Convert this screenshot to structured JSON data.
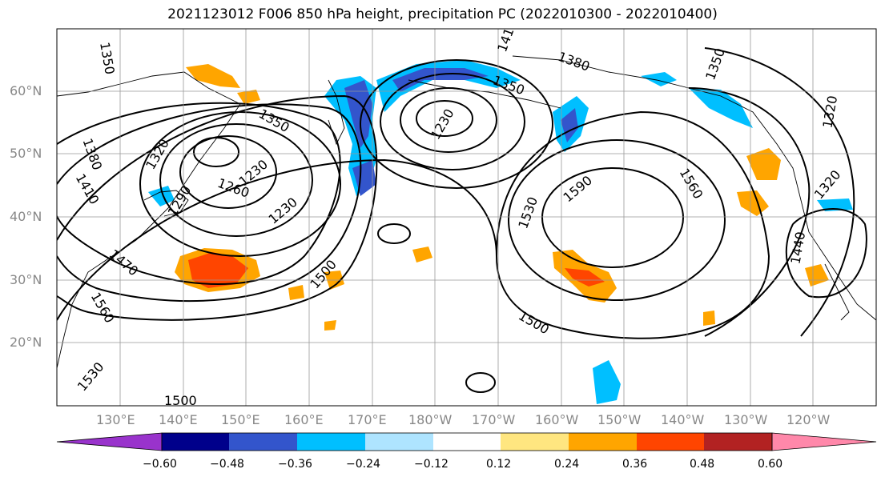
{
  "title": "2021123012 F006 850 hPa height, precipitation PC (2022010300 - 2022010400)",
  "lat_labels": [
    "60°N",
    "50°N",
    "40°N",
    "30°N",
    "20°N"
  ],
  "lon_labels": [
    "130°E",
    "140°E",
    "150°E",
    "160°E",
    "170°E",
    "180°W",
    "170°W",
    "160°W",
    "150°W",
    "140°W",
    "130°W",
    "120°W"
  ],
  "contour_labels": [
    "1350",
    "1380",
    "1410",
    "1320",
    "1350",
    "1230",
    "1260",
    "1230",
    "1290",
    "1230",
    "1470",
    "1500",
    "1560",
    "1530",
    "1590",
    "1560",
    "1500",
    "1440",
    "1320",
    "1350",
    "1380",
    "1410",
    "1350",
    "1320",
    "1530",
    "1500"
  ],
  "colorbar": {
    "ticks": [
      "−0.60",
      "−0.48",
      "−0.36",
      "−0.24",
      "−0.12",
      "0.12",
      "0.24",
      "0.36",
      "0.48",
      "0.60"
    ],
    "colors": [
      "#9933cc",
      "#00008b",
      "#3355cc",
      "#00bfff",
      "#aee4ff",
      "#ffffff",
      "#ffe680",
      "#ffa500",
      "#ff4500",
      "#b22222",
      "#ff88aa"
    ]
  }
}
